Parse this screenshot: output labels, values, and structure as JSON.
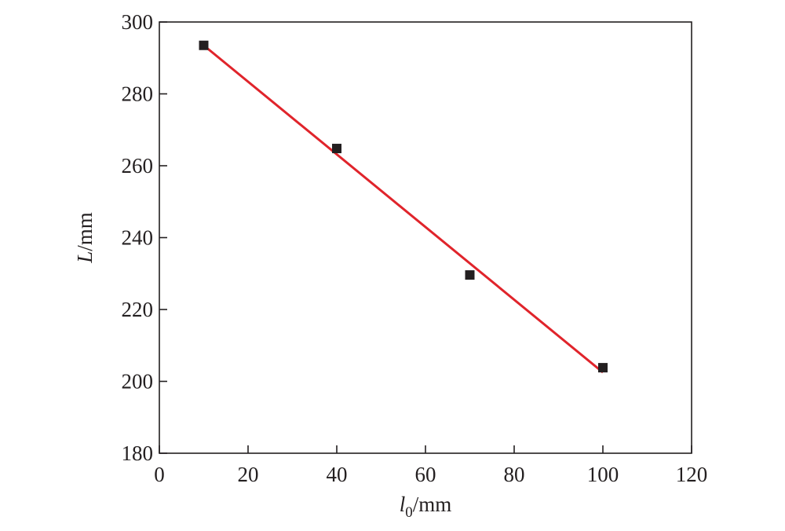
{
  "chart_data": {
    "type": "scatter",
    "x": [
      10,
      40,
      70,
      100
    ],
    "series": [
      {
        "values": [
          293.5,
          264.8,
          229.6,
          203.8
        ],
        "marker": "square",
        "color": "#231f20"
      }
    ],
    "fit_line": {
      "x": [
        10,
        100
      ],
      "y": [
        293.5,
        202.5
      ],
      "color": "#e0242b"
    },
    "xlabel": {
      "symbol": "l",
      "subscript": "0",
      "unit": "/mm"
    },
    "ylabel": {
      "symbol": "L",
      "unit": "/mm"
    },
    "xlim": [
      0,
      120
    ],
    "ylim": [
      180,
      300
    ],
    "xticks": [
      0,
      20,
      40,
      60,
      80,
      100,
      120
    ],
    "yticks": [
      180,
      200,
      220,
      240,
      260,
      280,
      300
    ],
    "grid": false,
    "legend": "none"
  }
}
